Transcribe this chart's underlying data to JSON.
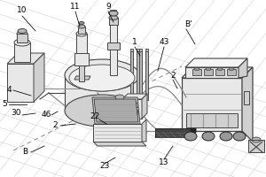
{
  "bg_color": "#ffffff",
  "line_color": "#444444",
  "dark_color": "#222222",
  "gray1": "#e8e8e8",
  "gray2": "#d0d0d0",
  "gray3": "#b8b8b8",
  "gray4": "#999999",
  "gray5": "#cccccc",
  "wire_color": "#888888",
  "grid_color": "#cccccc",
  "label_fontsize": 6.5,
  "label_color": "black",
  "floor_lines_h": [
    [
      [
        0.0,
        0.98
      ],
      [
        0.12,
        0.72
      ]
    ],
    [
      [
        0.0,
        0.91
      ],
      [
        0.12,
        0.65
      ]
    ],
    [
      [
        0.0,
        0.84
      ],
      [
        0.12,
        0.58
      ]
    ],
    [
      [
        0.0,
        0.77
      ],
      [
        0.15,
        0.52
      ]
    ],
    [
      [
        0.0,
        0.7
      ],
      [
        0.98,
        0.3
      ]
    ],
    [
      [
        0.0,
        0.63
      ],
      [
        0.98,
        0.23
      ]
    ],
    [
      [
        0.15,
        0.52
      ],
      [
        0.98,
        0.37
      ]
    ],
    [
      [
        0.15,
        0.58
      ],
      [
        0.98,
        0.43
      ]
    ],
    [
      [
        0.15,
        0.65
      ],
      [
        0.98,
        0.5
      ]
    ]
  ],
  "floor_lines_v": [
    [
      [
        0.08,
        0.72
      ],
      [
        0.2,
        0.98
      ]
    ],
    [
      [
        0.18,
        0.65
      ],
      [
        0.3,
        0.91
      ]
    ],
    [
      [
        0.28,
        0.58
      ],
      [
        0.4,
        0.84
      ]
    ],
    [
      [
        0.38,
        0.52
      ],
      [
        0.5,
        0.77
      ]
    ],
    [
      [
        0.48,
        0.45
      ],
      [
        0.6,
        0.71
      ]
    ],
    [
      [
        0.58,
        0.39
      ],
      [
        0.7,
        0.64
      ]
    ],
    [
      [
        0.68,
        0.33
      ],
      [
        0.8,
        0.57
      ]
    ],
    [
      [
        0.78,
        0.27
      ],
      [
        0.9,
        0.51
      ]
    ],
    [
      [
        0.88,
        0.22
      ],
      [
        0.98,
        0.46
      ]
    ]
  ]
}
